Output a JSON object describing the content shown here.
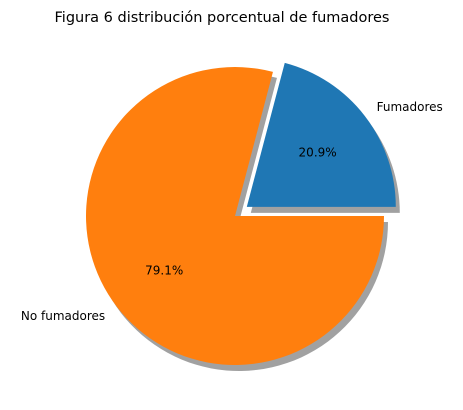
{
  "chart_data": {
    "type": "pie",
    "title": "Figura 6 distribución porcentual de fumadores",
    "shadow": true,
    "start_angle_deg": 0,
    "direction": "counterclockwise",
    "slices": [
      {
        "name": "Fumadores",
        "value": 20.9,
        "label": "20.9%",
        "color": "#1f77b4",
        "explode": 0.1
      },
      {
        "name": "No fumadores",
        "value": 79.1,
        "label": "79.1%",
        "color": "#ff7f0e",
        "explode": 0
      }
    ]
  }
}
